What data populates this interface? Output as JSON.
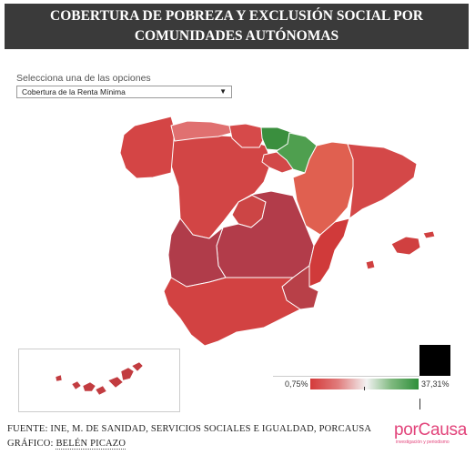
{
  "header": {
    "title_line1": "COBERTURA DE POBREZA Y EXCLUSIÓN SOCIAL POR",
    "title_line2": "COMUNIDADES AUTÓNOMAS"
  },
  "selector": {
    "label": "Selecciona una de las opciones",
    "selected_value": "Cobertura de la Renta Mínima"
  },
  "legend": {
    "min_label": "0,75%",
    "max_label": "37,31%",
    "min_color": "#d43a3a",
    "mid_color": "#f2f2f2",
    "max_color": "#2f8f3a"
  },
  "regions": {
    "galicia": "#d44545",
    "asturias": "#e07070",
    "cantabria": "#d64a4a",
    "pais_vasco": "#3a8f3e",
    "navarra": "#4f9f4f",
    "aragon": "#e06050",
    "cataluna": "#d44848",
    "castilla_leon": "#d24545",
    "la_rioja": "#d24848",
    "madrid": "#cc4545",
    "castilla_la_mancha": "#b23c4a",
    "extremadura": "#b03c4a",
    "valencia": "#d03a3a",
    "baleares": "#d04040",
    "andalucia": "#d24242",
    "murcia": "#b84048",
    "canarias": "#c23c40"
  },
  "footer": {
    "source": "FUENTE: INE, M. DE SANIDAD, SERVICIOS SOCIALES E IGUALDAD, PORCAUSA",
    "credit_prefix": "GRÁFICO: ",
    "credit_name": "BELÉN PICAZO"
  },
  "logo": {
    "brand": "porCausa",
    "tagline": "investigación y periodismo"
  }
}
